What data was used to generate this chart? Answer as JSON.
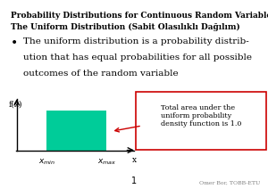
{
  "title_line1": "Probability Distributions for Continuous Random Variables:",
  "title_line2": "The Uniform Distribution (Sabit Olasılıklı Dağılım)",
  "bullet_text": "The uniform distribution is a probability distrib-\nution that has equal probabilities for all possible\noutcomes of the random variable",
  "fx_label": "f(x)",
  "x_label": "x",
  "xmin_label": "xₘᴵⁿ",
  "xmax_label": "xₘᵃˣ",
  "annotation_text": "Total area under the\nuniform probability\ndensity function is 1.0",
  "rect_color": "#00e5a0",
  "rect_facecolor": "#00cc99",
  "box_edgecolor": "#cc0000",
  "arrow_color": "#cc0000",
  "bg_color": "#ffffff",
  "plot_bg_color": "#e8e8e8",
  "page_number": "1",
  "footer_text": "Omer Bor, TOBB-ETU",
  "title_fontsize": 6.5,
  "subtitle_fontsize": 6.5,
  "bullet_fontsize": 7.5
}
